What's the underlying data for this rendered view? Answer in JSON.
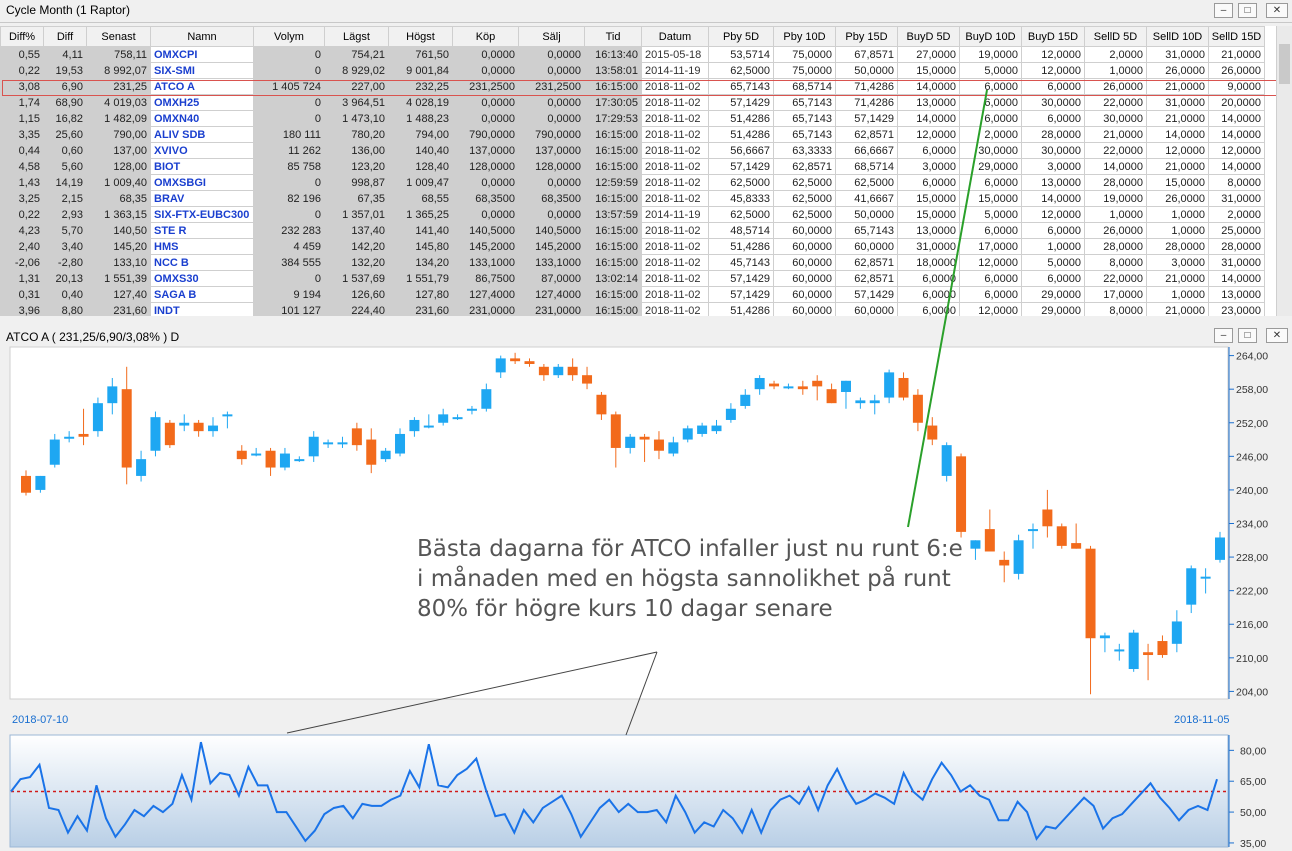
{
  "window": {
    "title": "Cycle Month (1  Raptor)",
    "buttons": [
      "minimize-icon",
      "restore-icon",
      "close-icon"
    ]
  },
  "table": {
    "columns": [
      "Diff%",
      "Diff",
      "Senast",
      "Namn",
      "Volym",
      "Lägst",
      "Högst",
      "Köp",
      "Sälj",
      "Tid",
      "Datum",
      "Pby 5D",
      "Pby 10D",
      "Pby 15D",
      "BuyD 5D",
      "BuyD 10D",
      "BuyD 15D",
      "SellD 5D",
      "SellD 10D",
      "SellD 15D"
    ],
    "selected_row": 2,
    "rows": [
      [
        "0,55",
        "4,11",
        "758,11",
        "OMXCPI",
        "0",
        "754,21",
        "761,50",
        "0,0000",
        "0,0000",
        "16:13:40",
        "2015-05-18",
        "53,5714",
        "75,0000",
        "67,8571",
        "27,0000",
        "19,0000",
        "12,0000",
        "2,0000",
        "31,0000",
        "21,0000"
      ],
      [
        "0,22",
        "19,53",
        "8 992,07",
        "SIX-SMI",
        "0",
        "8 929,02",
        "9 001,84",
        "0,0000",
        "0,0000",
        "13:58:01",
        "2014-11-19",
        "62,5000",
        "75,0000",
        "50,0000",
        "15,0000",
        "5,0000",
        "12,0000",
        "1,0000",
        "26,0000",
        "26,0000"
      ],
      [
        "3,08",
        "6,90",
        "231,25",
        "ATCO A",
        "1 405 724",
        "227,00",
        "232,25",
        "231,2500",
        "231,2500",
        "16:15:00",
        "2018-11-02",
        "65,7143",
        "68,5714",
        "71,4286",
        "14,0000",
        "6,0000",
        "6,0000",
        "26,0000",
        "21,0000",
        "9,0000"
      ],
      [
        "1,74",
        "68,90",
        "4 019,03",
        "OMXH25",
        "0",
        "3 964,51",
        "4 028,19",
        "0,0000",
        "0,0000",
        "17:30:05",
        "2018-11-02",
        "57,1429",
        "65,7143",
        "71,4286",
        "13,0000",
        "6,0000",
        "30,0000",
        "22,0000",
        "31,0000",
        "20,0000"
      ],
      [
        "1,15",
        "16,82",
        "1 482,09",
        "OMXN40",
        "0",
        "1 473,10",
        "1 488,23",
        "0,0000",
        "0,0000",
        "17:29:53",
        "2018-11-02",
        "51,4286",
        "65,7143",
        "57,1429",
        "14,0000",
        "6,0000",
        "6,0000",
        "30,0000",
        "21,0000",
        "14,0000"
      ],
      [
        "3,35",
        "25,60",
        "790,00",
        "ALIV SDB",
        "180 111",
        "780,20",
        "794,00",
        "790,0000",
        "790,0000",
        "16:15:00",
        "2018-11-02",
        "51,4286",
        "65,7143",
        "62,8571",
        "12,0000",
        "2,0000",
        "28,0000",
        "21,0000",
        "14,0000",
        "14,0000"
      ],
      [
        "0,44",
        "0,60",
        "137,00",
        "XVIVO",
        "11 262",
        "136,00",
        "140,40",
        "137,0000",
        "137,0000",
        "16:15:00",
        "2018-11-02",
        "56,6667",
        "63,3333",
        "66,6667",
        "6,0000",
        "30,0000",
        "30,0000",
        "22,0000",
        "12,0000",
        "12,0000"
      ],
      [
        "4,58",
        "5,60",
        "128,00",
        "BIOT",
        "85 758",
        "123,20",
        "128,40",
        "128,0000",
        "128,0000",
        "16:15:00",
        "2018-11-02",
        "57,1429",
        "62,8571",
        "68,5714",
        "3,0000",
        "29,0000",
        "3,0000",
        "14,0000",
        "21,0000",
        "14,0000"
      ],
      [
        "1,43",
        "14,19",
        "1 009,40",
        "OMXSBGI",
        "0",
        "998,87",
        "1 009,47",
        "0,0000",
        "0,0000",
        "12:59:59",
        "2018-11-02",
        "62,5000",
        "62,5000",
        "62,5000",
        "6,0000",
        "6,0000",
        "13,0000",
        "28,0000",
        "15,0000",
        "8,0000"
      ],
      [
        "3,25",
        "2,15",
        "68,35",
        "BRAV",
        "82 196",
        "67,35",
        "68,55",
        "68,3500",
        "68,3500",
        "16:15:00",
        "2018-11-02",
        "45,8333",
        "62,5000",
        "41,6667",
        "15,0000",
        "15,0000",
        "14,0000",
        "19,0000",
        "26,0000",
        "31,0000"
      ],
      [
        "0,22",
        "2,93",
        "1 363,15",
        "SIX-FTX-EUBC300",
        "0",
        "1 357,01",
        "1 365,25",
        "0,0000",
        "0,0000",
        "13:57:59",
        "2014-11-19",
        "62,5000",
        "62,5000",
        "50,0000",
        "15,0000",
        "5,0000",
        "12,0000",
        "1,0000",
        "1,0000",
        "2,0000"
      ],
      [
        "4,23",
        "5,70",
        "140,50",
        "STE R",
        "232 283",
        "137,40",
        "141,40",
        "140,5000",
        "140,5000",
        "16:15:00",
        "2018-11-02",
        "48,5714",
        "60,0000",
        "65,7143",
        "13,0000",
        "6,0000",
        "6,0000",
        "26,0000",
        "1,0000",
        "25,0000"
      ],
      [
        "2,40",
        "3,40",
        "145,20",
        "HMS",
        "4 459",
        "142,20",
        "145,80",
        "145,2000",
        "145,2000",
        "16:15:00",
        "2018-11-02",
        "51,4286",
        "60,0000",
        "60,0000",
        "31,0000",
        "17,0000",
        "1,0000",
        "28,0000",
        "28,0000",
        "28,0000"
      ],
      [
        "-2,06",
        "-2,80",
        "133,10",
        "NCC B",
        "384 555",
        "132,20",
        "134,20",
        "133,1000",
        "133,1000",
        "16:15:00",
        "2018-11-02",
        "45,7143",
        "60,0000",
        "62,8571",
        "18,0000",
        "12,0000",
        "5,0000",
        "8,0000",
        "3,0000",
        "31,0000"
      ],
      [
        "1,31",
        "20,13",
        "1 551,39",
        "OMXS30",
        "0",
        "1 537,69",
        "1 551,79",
        "86,7500",
        "87,0000",
        "13:02:14",
        "2018-11-02",
        "57,1429",
        "60,0000",
        "62,8571",
        "6,0000",
        "6,0000",
        "6,0000",
        "22,0000",
        "21,0000",
        "14,0000"
      ],
      [
        "0,31",
        "0,40",
        "127,40",
        "SAGA B",
        "9 194",
        "126,60",
        "127,80",
        "127,4000",
        "127,4000",
        "16:15:00",
        "2018-11-02",
        "57,1429",
        "60,0000",
        "57,1429",
        "6,0000",
        "6,0000",
        "29,0000",
        "17,0000",
        "1,0000",
        "13,0000"
      ],
      [
        "3,96",
        "8,80",
        "231,60",
        "INDT",
        "101 127",
        "224,40",
        "231,60",
        "231,0000",
        "231,0000",
        "16:15:00",
        "2018-11-02",
        "51,4286",
        "60,0000",
        "60,0000",
        "6,0000",
        "12,0000",
        "29,0000",
        "8,0000",
        "21,0000",
        "23,0000"
      ]
    ]
  },
  "chart": {
    "title": "ATCO A ( 231,25/6,90/3,08% )  D",
    "start_date": "2018-07-10",
    "end_date": "2018-11-05",
    "annotation_lines": [
      "Bästa dagarna för ATCO infaller just nu runt 6:e",
      "i månaden med en högsta sannolikhet på runt",
      "80% för högre kurs 10 dagar senare"
    ],
    "colors": {
      "up": "#1ea7f2",
      "down": "#f26a1b",
      "indicator": "#1a73e8",
      "threshold": "#d11a1a",
      "arrow": "#2aa02a"
    }
  },
  "chart_data": [
    {
      "type": "candlestick",
      "title": "ATCO A ( 231,25/6,90/3,08% )  D",
      "y_ticks": [
        204,
        210,
        216,
        222,
        228,
        234,
        240,
        246,
        252,
        258,
        264
      ],
      "y_tick_labels": [
        "204,00",
        "210,00",
        "216,00",
        "222,00",
        "228,00",
        "234,00",
        "240,00",
        "246,00",
        "252,00",
        "258,00",
        "264,00"
      ],
      "ylim": [
        203,
        265
      ],
      "candles": [
        {
          "o": 242.5,
          "h": 243.5,
          "l": 239.0,
          "c": 239.5
        },
        {
          "o": 240.0,
          "h": 242.5,
          "l": 239.5,
          "c": 242.5
        },
        {
          "o": 244.5,
          "h": 250.0,
          "l": 244.0,
          "c": 249.0
        },
        {
          "o": 249.5,
          "h": 250.5,
          "l": 248.5,
          "c": 249.5
        },
        {
          "o": 250.0,
          "h": 254.5,
          "l": 248.0,
          "c": 249.5
        },
        {
          "o": 250.5,
          "h": 256.5,
          "l": 249.5,
          "c": 255.5
        },
        {
          "o": 255.5,
          "h": 260.0,
          "l": 253.5,
          "c": 258.5
        },
        {
          "o": 258.0,
          "h": 262.0,
          "l": 241.0,
          "c": 244.0
        },
        {
          "o": 242.5,
          "h": 247.0,
          "l": 241.5,
          "c": 245.5
        },
        {
          "o": 247.0,
          "h": 254.0,
          "l": 246.0,
          "c": 253.0
        },
        {
          "o": 252.0,
          "h": 252.5,
          "l": 247.5,
          "c": 248.0
        },
        {
          "o": 251.5,
          "h": 253.5,
          "l": 250.5,
          "c": 252.0
        },
        {
          "o": 252.0,
          "h": 252.5,
          "l": 249.5,
          "c": 250.5
        },
        {
          "o": 250.5,
          "h": 253.0,
          "l": 249.5,
          "c": 251.5
        },
        {
          "o": 253.5,
          "h": 254.0,
          "l": 251.0,
          "c": 253.5
        },
        {
          "o": 247.0,
          "h": 248.0,
          "l": 244.5,
          "c": 245.5
        },
        {
          "o": 246.5,
          "h": 247.5,
          "l": 246.0,
          "c": 246.5
        },
        {
          "o": 247.0,
          "h": 247.5,
          "l": 242.5,
          "c": 244.0
        },
        {
          "o": 244.0,
          "h": 247.5,
          "l": 243.5,
          "c": 246.5
        },
        {
          "o": 245.5,
          "h": 246.0,
          "l": 245.0,
          "c": 245.5
        },
        {
          "o": 246.0,
          "h": 250.5,
          "l": 245.0,
          "c": 249.5
        },
        {
          "o": 248.5,
          "h": 249.0,
          "l": 247.5,
          "c": 248.5
        },
        {
          "o": 248.5,
          "h": 249.5,
          "l": 247.5,
          "c": 248.5
        },
        {
          "o": 251.0,
          "h": 252.0,
          "l": 247.0,
          "c": 248.0
        },
        {
          "o": 249.0,
          "h": 251.0,
          "l": 243.0,
          "c": 244.5
        },
        {
          "o": 245.5,
          "h": 247.5,
          "l": 245.0,
          "c": 247.0
        },
        {
          "o": 246.5,
          "h": 251.0,
          "l": 246.0,
          "c": 250.0
        },
        {
          "o": 250.5,
          "h": 253.0,
          "l": 249.5,
          "c": 252.5
        },
        {
          "o": 251.5,
          "h": 253.5,
          "l": 251.0,
          "c": 251.5
        },
        {
          "o": 252.0,
          "h": 254.5,
          "l": 251.5,
          "c": 253.5
        },
        {
          "o": 253.0,
          "h": 253.5,
          "l": 252.5,
          "c": 253.0
        },
        {
          "o": 254.5,
          "h": 255.0,
          "l": 253.5,
          "c": 254.5
        },
        {
          "o": 254.5,
          "h": 259.0,
          "l": 254.0,
          "c": 258.0
        },
        {
          "o": 261.0,
          "h": 264.0,
          "l": 260.0,
          "c": 263.5
        },
        {
          "o": 263.5,
          "h": 264.5,
          "l": 262.5,
          "c": 263.0
        },
        {
          "o": 263.0,
          "h": 263.5,
          "l": 262.0,
          "c": 262.5
        },
        {
          "o": 262.0,
          "h": 262.5,
          "l": 259.5,
          "c": 260.5
        },
        {
          "o": 260.5,
          "h": 262.5,
          "l": 260.0,
          "c": 262.0
        },
        {
          "o": 262.0,
          "h": 263.5,
          "l": 259.5,
          "c": 260.5
        },
        {
          "o": 260.5,
          "h": 262.0,
          "l": 258.0,
          "c": 259.0
        },
        {
          "o": 257.0,
          "h": 257.5,
          "l": 252.5,
          "c": 253.5
        },
        {
          "o": 253.5,
          "h": 254.0,
          "l": 244.0,
          "c": 247.5
        },
        {
          "o": 247.5,
          "h": 250.0,
          "l": 246.5,
          "c": 249.5
        },
        {
          "o": 249.5,
          "h": 250.0,
          "l": 245.0,
          "c": 249.0
        },
        {
          "o": 249.0,
          "h": 250.5,
          "l": 245.5,
          "c": 247.0
        },
        {
          "o": 246.5,
          "h": 249.5,
          "l": 246.0,
          "c": 248.5
        },
        {
          "o": 249.0,
          "h": 251.5,
          "l": 248.5,
          "c": 251.0
        },
        {
          "o": 250.0,
          "h": 252.0,
          "l": 249.5,
          "c": 251.5
        },
        {
          "o": 250.5,
          "h": 252.5,
          "l": 250.0,
          "c": 251.5
        },
        {
          "o": 252.5,
          "h": 255.5,
          "l": 252.0,
          "c": 254.5
        },
        {
          "o": 255.0,
          "h": 258.0,
          "l": 254.5,
          "c": 257.0
        },
        {
          "o": 258.0,
          "h": 260.5,
          "l": 257.0,
          "c": 260.0
        },
        {
          "o": 259.0,
          "h": 259.5,
          "l": 258.0,
          "c": 258.5
        },
        {
          "o": 258.5,
          "h": 259.0,
          "l": 258.0,
          "c": 258.5
        },
        {
          "o": 258.5,
          "h": 259.5,
          "l": 257.0,
          "c": 258.0
        },
        {
          "o": 259.5,
          "h": 260.5,
          "l": 256.0,
          "c": 258.5
        },
        {
          "o": 258.0,
          "h": 259.0,
          "l": 255.5,
          "c": 255.5
        },
        {
          "o": 257.5,
          "h": 259.5,
          "l": 254.5,
          "c": 259.5
        },
        {
          "o": 255.5,
          "h": 256.5,
          "l": 254.5,
          "c": 256.0
        },
        {
          "o": 255.5,
          "h": 257.0,
          "l": 253.5,
          "c": 256.0
        },
        {
          "o": 256.5,
          "h": 261.5,
          "l": 255.5,
          "c": 261.0
        },
        {
          "o": 260.0,
          "h": 261.0,
          "l": 256.0,
          "c": 256.5
        },
        {
          "o": 257.0,
          "h": 258.0,
          "l": 250.5,
          "c": 252.0
        },
        {
          "o": 251.5,
          "h": 253.0,
          "l": 248.0,
          "c": 249.0
        },
        {
          "o": 242.5,
          "h": 248.5,
          "l": 241.5,
          "c": 248.0
        },
        {
          "o": 246.0,
          "h": 246.5,
          "l": 231.5,
          "c": 232.5
        },
        {
          "o": 229.5,
          "h": 231.0,
          "l": 227.5,
          "c": 231.0
        },
        {
          "o": 233.0,
          "h": 236.5,
          "l": 229.5,
          "c": 229.0
        },
        {
          "o": 227.5,
          "h": 229.0,
          "l": 223.5,
          "c": 226.5
        },
        {
          "o": 225.0,
          "h": 232.0,
          "l": 224.0,
          "c": 231.0
        },
        {
          "o": 233.0,
          "h": 234.0,
          "l": 229.5,
          "c": 233.0
        },
        {
          "o": 236.5,
          "h": 240.0,
          "l": 231.5,
          "c": 233.5
        },
        {
          "o": 233.5,
          "h": 234.0,
          "l": 229.5,
          "c": 230.0
        },
        {
          "o": 230.5,
          "h": 234.0,
          "l": 229.5,
          "c": 229.5
        },
        {
          "o": 229.5,
          "h": 230.0,
          "l": 203.5,
          "c": 213.5
        },
        {
          "o": 213.5,
          "h": 214.5,
          "l": 211.0,
          "c": 214.0
        },
        {
          "o": 211.5,
          "h": 212.5,
          "l": 209.5,
          "c": 211.5
        },
        {
          "o": 208.0,
          "h": 215.0,
          "l": 207.5,
          "c": 214.5
        },
        {
          "o": 211.0,
          "h": 212.5,
          "l": 206.0,
          "c": 210.5
        },
        {
          "o": 213.0,
          "h": 214.0,
          "l": 210.0,
          "c": 210.5
        },
        {
          "o": 212.5,
          "h": 218.5,
          "l": 211.0,
          "c": 216.5
        },
        {
          "o": 219.5,
          "h": 226.5,
          "l": 218.0,
          "c": 226.0
        },
        {
          "o": 224.5,
          "h": 226.0,
          "l": 221.5,
          "c": 224.5
        },
        {
          "o": 227.5,
          "h": 232.5,
          "l": 227.0,
          "c": 231.5
        }
      ]
    },
    {
      "type": "line",
      "y_ticks": [
        35,
        50,
        65,
        80
      ],
      "y_tick_labels": [
        "35,00",
        "50,00",
        "65,00",
        "80,00"
      ],
      "ylim": [
        34,
        86
      ],
      "threshold": 60,
      "values": [
        60,
        66,
        67,
        73,
        52,
        51,
        40,
        48,
        41,
        63,
        47,
        38,
        44,
        51,
        48,
        53,
        50,
        54,
        68,
        56,
        84,
        64,
        69,
        68,
        58,
        72,
        63,
        63,
        50,
        50,
        43,
        36,
        41,
        49,
        52,
        53,
        47,
        54,
        53,
        53,
        56,
        58,
        70,
        62,
        83,
        63,
        62,
        68,
        71,
        76,
        61,
        48,
        49,
        40,
        51,
        45,
        52,
        55,
        58,
        49,
        38,
        45,
        52,
        56,
        50,
        54,
        50,
        50,
        51,
        45,
        58,
        50,
        40,
        45,
        43,
        51,
        47,
        40,
        51,
        40,
        51,
        56,
        58,
        54,
        62,
        51,
        63,
        71,
        61,
        54,
        56,
        59,
        57,
        54,
        69,
        60,
        56,
        66,
        74,
        68,
        60,
        63,
        58,
        56,
        46,
        46,
        55,
        50,
        37,
        43,
        42,
        47,
        52,
        57,
        53,
        42,
        47,
        49,
        54,
        59,
        64,
        57,
        52,
        46,
        51,
        53,
        51,
        66
      ]
    }
  ]
}
